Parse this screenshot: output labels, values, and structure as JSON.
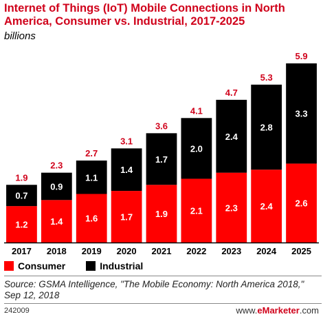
{
  "header": {
    "title": "Internet of Things (IoT) Mobile Connections in North America, Consumer vs. Industrial, 2017-2025",
    "subtitle": "billions"
  },
  "legend": {
    "consumer": "Consumer",
    "industrial": "Industrial"
  },
  "footer": {
    "source": "Source: GSMA Intelligence, \"The Mobile Economy: North America 2018,\" Sep 12, 2018",
    "id": "242009",
    "brand_prefix": "www.",
    "brand_name": "eMarketer",
    "brand_suffix": ".com"
  },
  "colors": {
    "consumer": "#ff0000",
    "industrial": "#000000",
    "total_label": "#d0021b",
    "title": "#d0021b"
  },
  "chart_data": {
    "type": "bar",
    "stacked": true,
    "categories": [
      "2017",
      "2018",
      "2019",
      "2020",
      "2021",
      "2022",
      "2023",
      "2024",
      "2025"
    ],
    "series": [
      {
        "name": "Consumer",
        "values": [
          1.2,
          1.4,
          1.6,
          1.7,
          1.9,
          2.1,
          2.3,
          2.4,
          2.6
        ]
      },
      {
        "name": "Industrial",
        "values": [
          0.7,
          0.9,
          1.1,
          1.4,
          1.7,
          2.0,
          2.4,
          2.8,
          3.3
        ]
      }
    ],
    "totals": [
      1.9,
      2.3,
      2.7,
      3.1,
      3.6,
      4.1,
      4.7,
      5.3,
      5.9
    ],
    "title": "Internet of Things (IoT) Mobile Connections in North America, Consumer vs. Industrial, 2017-2025",
    "subtitle": "billions",
    "xlabel": "",
    "ylabel": "",
    "ylim": [
      0,
      5.9
    ],
    "grid": false,
    "legend_position": "bottom-left"
  }
}
